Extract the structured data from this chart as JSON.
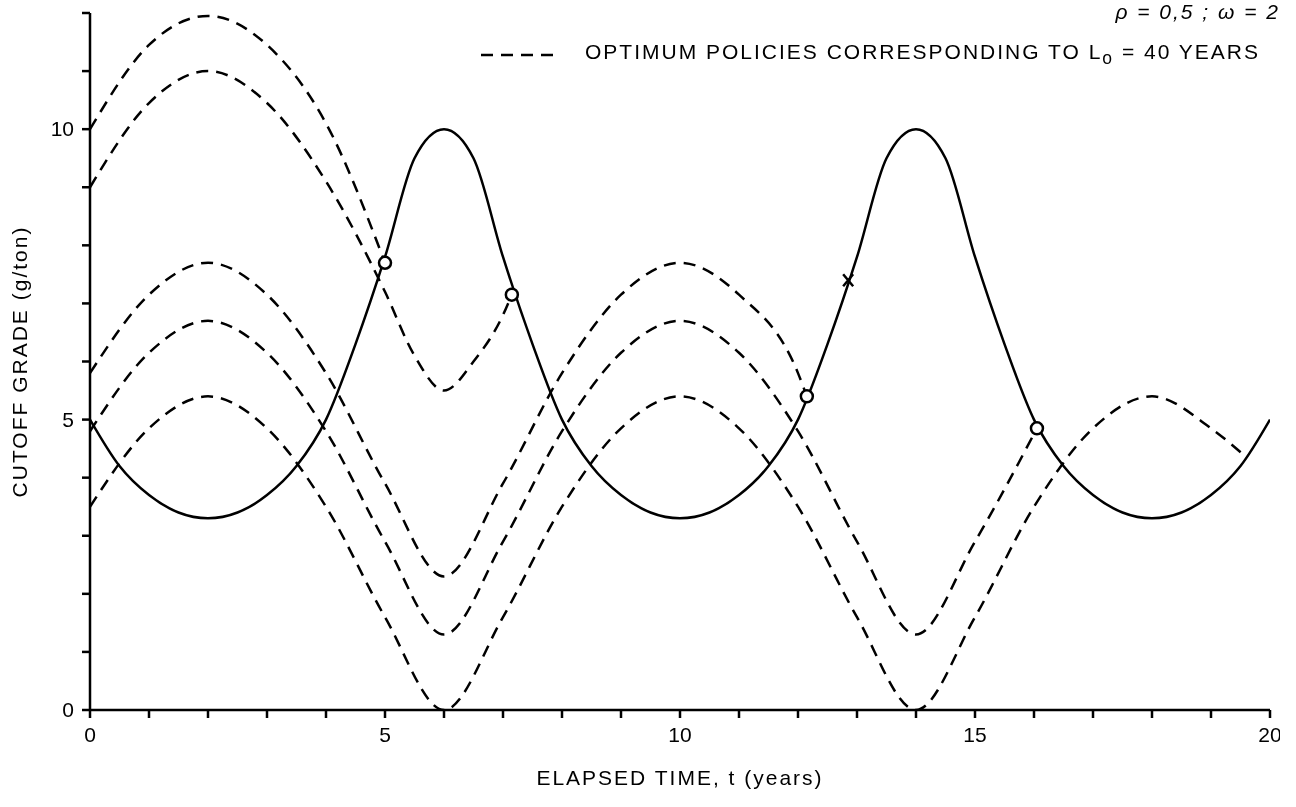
{
  "chart_data": {
    "type": "line",
    "xlabel": "ELAPSED TIME, t (years)",
    "ylabel": "CUTOFF GRADE (g/ton)",
    "annotations": [
      "ρ = 0,5 ; ω = 2"
    ],
    "legend": "top right",
    "grid": false,
    "xlim": [
      0,
      20
    ],
    "ylim": [
      0,
      12
    ],
    "xticks": [
      0,
      {
        "value": 1,
        "label": null
      },
      {
        "value": 2,
        "label": null
      },
      {
        "value": 3,
        "label": null
      },
      {
        "value": 4,
        "label": null
      },
      5,
      {
        "value": 6,
        "label": null
      },
      {
        "value": 7,
        "label": null
      },
      {
        "value": 8,
        "label": null
      },
      {
        "value": 9,
        "label": null
      },
      10,
      {
        "value": 11,
        "label": null
      },
      {
        "value": 12,
        "label": null
      },
      {
        "value": 13,
        "label": null
      },
      {
        "value": 14,
        "label": null
      },
      15,
      {
        "value": 16,
        "label": null
      },
      {
        "value": 17,
        "label": null
      },
      {
        "value": 18,
        "label": null
      },
      {
        "value": 19,
        "label": null
      },
      20
    ],
    "yticks": [
      0,
      {
        "value": 1,
        "label": null
      },
      {
        "value": 2,
        "label": null
      },
      {
        "value": 3,
        "label": null
      },
      {
        "value": 4,
        "label": null
      },
      5,
      {
        "value": 6,
        "label": null
      },
      {
        "value": 7,
        "label": null
      },
      {
        "value": 8,
        "label": null
      },
      {
        "value": 9,
        "label": null
      },
      10,
      {
        "value": 11,
        "label": null
      },
      {
        "value": 12,
        "label": null
      }
    ],
    "series": [
      {
        "type": "line",
        "line_style": "solid",
        "color": "#000000",
        "x": [
          0,
          0.5,
          1,
          1.5,
          2,
          2.5,
          3,
          3.5,
          4,
          4.5,
          5,
          5.5,
          6,
          6.5,
          7,
          7.5,
          8,
          8.5,
          9,
          9.5,
          10,
          10.5,
          11,
          11.5,
          12,
          12.5,
          13,
          13.5,
          14,
          14.5,
          15,
          15.5,
          16,
          16.5,
          17,
          17.5,
          18,
          18.5,
          19,
          19.5,
          20
        ],
        "values": [
          5.0,
          4.2,
          3.7,
          3.4,
          3.3,
          3.4,
          3.7,
          4.2,
          5.0,
          6.3,
          7.8,
          9.5,
          10,
          9.5,
          7.8,
          6.3,
          5.0,
          4.2,
          3.7,
          3.4,
          3.3,
          3.4,
          3.7,
          4.2,
          5.0,
          6.3,
          7.8,
          9.5,
          10,
          9.5,
          7.8,
          6.3,
          5.0,
          4.2,
          3.7,
          3.4,
          3.3,
          3.4,
          3.7,
          4.2,
          5.0
        ]
      },
      {
        "type": "line",
        "line_style": "dashed",
        "color": "#000000",
        "name": "OPTIMUM POLICIES CORRESPONDING TO L$_{o}$ = 40 YEARS",
        "x": [
          0,
          1,
          2,
          3,
          4,
          5
        ],
        "values": [
          10,
          11.45,
          11.95,
          11.45,
          10.1,
          7.7
        ]
      },
      {
        "type": "line",
        "line_style": "dashed",
        "color": "#000000",
        "x": [
          0,
          1,
          2,
          3,
          4,
          5,
          5.5,
          6,
          6.5,
          7,
          7.15
        ],
        "values": [
          9,
          10.45,
          11,
          10.45,
          9.1,
          7.2,
          6.1,
          5.5,
          6.0,
          6.8,
          7.15
        ]
      },
      {
        "type": "line",
        "line_style": "dashed",
        "color": "#000000",
        "x": [
          0,
          1,
          2,
          3,
          4,
          5,
          6,
          7,
          8,
          9,
          10,
          11,
          12,
          12.15
        ],
        "values": [
          5.8,
          7.15,
          7.7,
          7.15,
          5.8,
          3.9,
          2.3,
          3.9,
          5.8,
          7.15,
          7.7,
          7.15,
          5.8,
          5.4
        ]
      },
      {
        "type": "line",
        "line_style": "dashed",
        "color": "#000000",
        "x": [
          0,
          1,
          2,
          3,
          4,
          5,
          6,
          7,
          8,
          9,
          10,
          11,
          12,
          13,
          14,
          15,
          16.05
        ],
        "values": [
          4.8,
          6.15,
          6.7,
          6.15,
          4.8,
          2.9,
          1.3,
          2.9,
          4.8,
          6.15,
          6.7,
          6.15,
          4.8,
          2.9,
          1.3,
          2.9,
          4.85
        ]
      },
      {
        "type": "line",
        "line_style": "dashed",
        "color": "#000000",
        "x": [
          0,
          1,
          2,
          3,
          4,
          5,
          6,
          7,
          8,
          9,
          10,
          11,
          12,
          13,
          14,
          15,
          16,
          17,
          18,
          19,
          19.6
        ],
        "values": [
          3.5,
          4.85,
          5.4,
          4.85,
          3.5,
          1.6,
          0,
          1.6,
          3.5,
          4.85,
          5.4,
          4.85,
          3.5,
          1.6,
          0,
          1.6,
          3.5,
          4.85,
          5.4,
          4.85,
          4.35
        ]
      },
      {
        "type": "scatter",
        "marker": "circle",
        "color": "#000000",
        "x": [
          5,
          7.15,
          12.15,
          16.05
        ],
        "values": [
          7.7,
          7.15,
          5.4,
          4.85
        ]
      },
      {
        "type": "scatter",
        "marker": "cross",
        "color": "#000000",
        "x": [
          12.85
        ],
        "values": [
          7.4
        ]
      }
    ]
  }
}
